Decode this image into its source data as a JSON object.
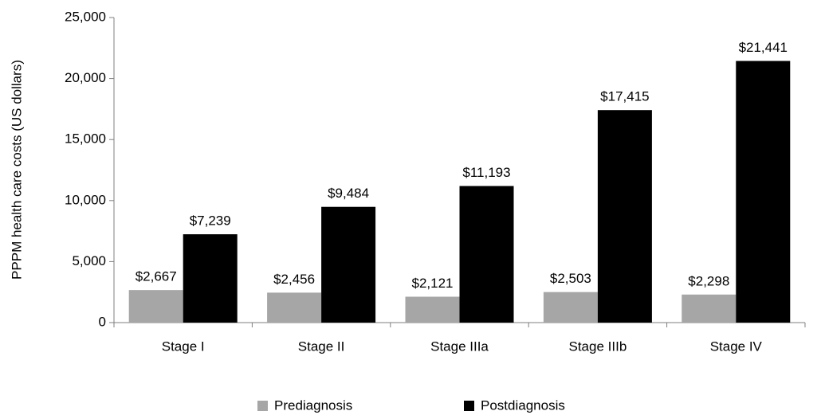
{
  "chart_data": {
    "type": "bar",
    "y_label": "PPPM health care costs (US dollars)",
    "categories": [
      "Stage I",
      "Stage II",
      "Stage IIIa",
      "Stage IIIb",
      "Stage IV"
    ],
    "series": [
      {
        "name": "Prediagnosis",
        "color": "#a6a6a6",
        "values": [
          2667,
          2456,
          2121,
          2503,
          2298
        ],
        "value_labels": [
          "$2,667",
          "$2,456",
          "$2,121",
          "$2,503",
          "$2,298"
        ]
      },
      {
        "name": "Postdiagnosis",
        "color": "#000000",
        "values": [
          7239,
          9484,
          11193,
          17415,
          21441
        ],
        "value_labels": [
          "$7,239",
          "$9,484",
          "$11,193",
          "$17,415",
          "$21,441"
        ]
      }
    ],
    "ylim": [
      0,
      25000
    ],
    "yticks": [
      0,
      {
        "value": 5000,
        "label": "5,000"
      },
      {
        "value": 10000,
        "label": "10,000"
      },
      {
        "value": 15000,
        "label": "15,000"
      },
      {
        "value": 20000,
        "label": "20,000"
      },
      {
        "value": 25000,
        "label": "25,000"
      }
    ],
    "grid": false,
    "legend": "bottom"
  }
}
